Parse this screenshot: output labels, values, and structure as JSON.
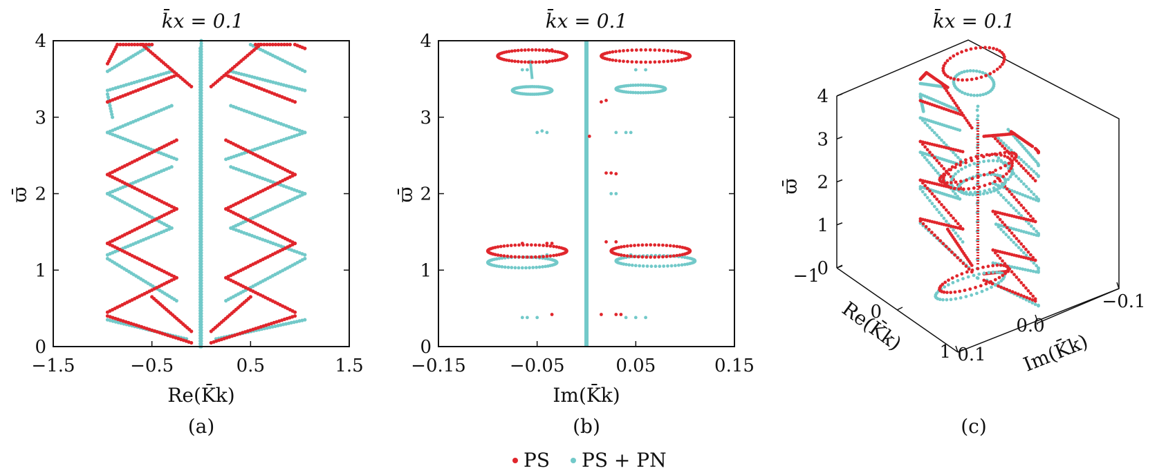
{
  "legend": [
    {
      "label": "PS",
      "color": "#e0262c"
    },
    {
      "label": "PS + PN",
      "color": "#72c9c9"
    }
  ],
  "chart_data": [
    {
      "type": "scatter",
      "panel": "(a)",
      "title": "k̄x = 0.1",
      "xlabel": "Re(K̄k)",
      "ylabel": "ϖ̄",
      "xlim": [
        -1.5,
        1.5
      ],
      "ylim": [
        0,
        4
      ],
      "xticks": [
        "−1.5",
        "−0.5",
        "0.5",
        "1.5"
      ],
      "xtick_values": [
        -1.5,
        -0.5,
        0.5,
        1.5
      ],
      "yticks": [
        "0",
        "1",
        "2",
        "3",
        "4"
      ],
      "series": [
        {
          "name": "PS",
          "color": "#e0262c",
          "segments": [
            [
              [
                -0.95,
                0.4
              ],
              [
                -0.1,
                0.05
              ]
            ],
            [
              [
                -0.95,
                0.45
              ],
              [
                -0.25,
                0.9
              ]
            ],
            [
              [
                -0.25,
                0.9
              ],
              [
                -0.95,
                1.35
              ]
            ],
            [
              [
                -0.95,
                1.35
              ],
              [
                -0.25,
                1.8
              ]
            ],
            [
              [
                -0.25,
                1.8
              ],
              [
                -0.95,
                2.25
              ]
            ],
            [
              [
                -0.95,
                2.25
              ],
              [
                -0.25,
                2.7
              ]
            ],
            [
              [
                -0.95,
                3.2
              ],
              [
                -0.25,
                3.55
              ]
            ],
            [
              [
                -0.95,
                3.7
              ],
              [
                -0.85,
                3.95
              ]
            ],
            [
              [
                -0.85,
                3.95
              ],
              [
                -0.5,
                3.95
              ]
            ],
            [
              [
                -0.6,
                3.95
              ],
              [
                -0.1,
                3.4
              ]
            ],
            [
              [
                -0.5,
                0.65
              ],
              [
                -0.1,
                0.2
              ]
            ],
            [
              [
                0.95,
                0.4
              ],
              [
                0.1,
                0.05
              ]
            ],
            [
              [
                0.95,
                0.45
              ],
              [
                0.25,
                0.9
              ]
            ],
            [
              [
                0.25,
                0.9
              ],
              [
                0.95,
                1.35
              ]
            ],
            [
              [
                0.95,
                1.35
              ],
              [
                0.25,
                1.8
              ]
            ],
            [
              [
                0.25,
                1.8
              ],
              [
                0.95,
                2.25
              ]
            ],
            [
              [
                0.95,
                2.25
              ],
              [
                0.25,
                2.7
              ]
            ],
            [
              [
                0.95,
                3.2
              ],
              [
                0.25,
                3.55
              ]
            ],
            [
              [
                1.05,
                3.9
              ],
              [
                0.95,
                3.95
              ]
            ],
            [
              [
                0.9,
                3.95
              ],
              [
                0.55,
                3.95
              ]
            ],
            [
              [
                0.6,
                3.95
              ],
              [
                0.1,
                3.4
              ]
            ],
            [
              [
                0.5,
                0.65
              ],
              [
                0.1,
                0.2
              ]
            ]
          ]
        },
        {
          "name": "PS + PN",
          "color": "#72c9c9",
          "segments": [
            [
              [
                -0.95,
                0.35
              ],
              [
                -0.15,
                0.1
              ]
            ],
            [
              [
                -0.95,
                1.15
              ],
              [
                -0.25,
                0.6
              ]
            ],
            [
              [
                -0.95,
                1.2
              ],
              [
                -0.3,
                1.55
              ]
            ],
            [
              [
                -0.95,
                2.0
              ],
              [
                -0.3,
                2.35
              ]
            ],
            [
              [
                -0.3,
                1.55
              ],
              [
                -0.95,
                2.0
              ]
            ],
            [
              [
                -0.95,
                2.8
              ],
              [
                -0.25,
                2.45
              ]
            ],
            [
              [
                -0.95,
                2.8
              ],
              [
                -0.3,
                3.15
              ]
            ],
            [
              [
                -0.95,
                3.35
              ],
              [
                -0.3,
                3.6
              ]
            ],
            [
              [
                -0.95,
                3.6
              ],
              [
                -0.5,
                3.95
              ]
            ],
            [
              [
                -0.95,
                3.3
              ],
              [
                -0.9,
                3.0
              ]
            ],
            [
              [
                1.05,
                0.35
              ],
              [
                0.15,
                0.1
              ]
            ],
            [
              [
                1.05,
                1.15
              ],
              [
                0.25,
                0.6
              ]
            ],
            [
              [
                1.05,
                1.2
              ],
              [
                0.3,
                1.55
              ]
            ],
            [
              [
                1.05,
                2.0
              ],
              [
                0.3,
                2.35
              ]
            ],
            [
              [
                0.3,
                1.55
              ],
              [
                1.05,
                2.0
              ]
            ],
            [
              [
                1.05,
                2.8
              ],
              [
                0.25,
                2.45
              ]
            ],
            [
              [
                1.05,
                2.8
              ],
              [
                0.3,
                3.15
              ]
            ],
            [
              [
                1.05,
                3.35
              ],
              [
                0.3,
                3.6
              ]
            ],
            [
              [
                1.05,
                3.6
              ],
              [
                0.5,
                3.95
              ]
            ],
            [
              [
                -0.01,
                0.0
              ],
              [
                -0.01,
                3.9
              ]
            ],
            [
              [
                0.0,
                0.0
              ],
              [
                0.0,
                4.0
              ]
            ]
          ]
        }
      ]
    },
    {
      "type": "scatter",
      "panel": "(b)",
      "title": "k̄x = 0.1",
      "xlabel": "Im(K̄k)",
      "ylabel": "ϖ̄",
      "xlim": [
        -0.15,
        0.15
      ],
      "ylim": [
        0,
        4
      ],
      "xticks": [
        "−0.15",
        "−0.05",
        "0.05",
        "0.15"
      ],
      "xtick_values": [
        -0.15,
        -0.05,
        0.05,
        0.15
      ],
      "yticks": [
        "0",
        "1",
        "2",
        "3",
        "4"
      ],
      "series": [
        {
          "name": "PS",
          "color": "#e0262c",
          "loops": [
            {
              "cx": -0.055,
              "cy": 3.8,
              "rx": 0.035,
              "ry": 0.08
            },
            {
              "cx": 0.06,
              "cy": 3.8,
              "rx": 0.045,
              "ry": 0.08
            },
            {
              "cx": -0.06,
              "cy": 1.25,
              "rx": 0.04,
              "ry": 0.08
            },
            {
              "cx": 0.065,
              "cy": 1.25,
              "rx": 0.04,
              "ry": 0.08
            }
          ],
          "dots": [
            [
              -0.04,
              3.88
            ],
            [
              -0.035,
              3.88
            ],
            [
              -0.04,
              3.72
            ],
            [
              0.015,
              3.2
            ],
            [
              0.02,
              3.22
            ],
            [
              0.003,
              2.75
            ],
            [
              0.02,
              2.27
            ],
            [
              0.025,
              2.27
            ],
            [
              0.03,
              2.26
            ],
            [
              -0.04,
              1.35
            ],
            [
              -0.035,
              1.35
            ],
            [
              -0.065,
              1.35
            ],
            [
              0.02,
              1.37
            ],
            [
              0.03,
              1.37
            ],
            [
              -0.035,
              0.42
            ],
            [
              0.015,
              0.42
            ],
            [
              0.03,
              0.42
            ],
            [
              0.035,
              0.42
            ]
          ]
        },
        {
          "name": "PS + PN",
          "color": "#72c9c9",
          "loops": [
            {
              "cx": -0.055,
              "cy": 3.35,
              "rx": 0.02,
              "ry": 0.05
            },
            {
              "cx": 0.055,
              "cy": 3.37,
              "rx": 0.025,
              "ry": 0.05
            },
            {
              "cx": -0.065,
              "cy": 1.1,
              "rx": 0.035,
              "ry": 0.07
            },
            {
              "cx": 0.07,
              "cy": 1.12,
              "rx": 0.04,
              "ry": 0.07
            }
          ],
          "dots": [
            [
              -0.065,
              3.62
            ],
            [
              -0.06,
              3.62
            ],
            [
              0.05,
              3.62
            ],
            [
              0.06,
              3.62
            ],
            [
              -0.05,
              2.8
            ],
            [
              -0.045,
              2.82
            ],
            [
              -0.04,
              2.8
            ],
            [
              0.03,
              2.8
            ],
            [
              0.04,
              2.8
            ],
            [
              0.045,
              2.8
            ],
            [
              0.025,
              2.0
            ],
            [
              0.03,
              2.0
            ],
            [
              -0.045,
              1.18
            ],
            [
              -0.04,
              1.2
            ],
            [
              0.035,
              1.2
            ],
            [
              0.045,
              1.2
            ],
            [
              -0.065,
              0.38
            ],
            [
              -0.06,
              0.38
            ],
            [
              -0.05,
              0.38
            ],
            [
              0.04,
              0.38
            ],
            [
              0.05,
              0.38
            ],
            [
              0.06,
              0.38
            ]
          ],
          "vertical_line_x": 0.0,
          "short_segment": [
            [
              -0.057,
              3.75
            ],
            [
              -0.055,
              3.5
            ]
          ]
        }
      ]
    },
    {
      "type": "scatter",
      "panel": "(c)",
      "projection": "3d",
      "title": "k̄x = 0.1",
      "xlabel": "Re(K̄k)",
      "ylabel": "Im(K̄k)",
      "zlabel": "ϖ̄",
      "xticks": [
        "−1",
        "0",
        "1"
      ],
      "yticks": [
        "0.1",
        "0.0",
        "−0.1"
      ],
      "zticks": [
        "0",
        "1",
        "2",
        "3",
        "4"
      ],
      "zlim": [
        0,
        4
      ]
    }
  ],
  "panel_titles": [
    "k̄x = 0.1",
    "k̄x = 0.1",
    "k̄x = 0.1"
  ],
  "panel_labels": [
    "(a)",
    "(b)",
    "(c)"
  ],
  "axis_titles": {
    "a_x": "Re(K̄k)",
    "a_y": "ϖ̄",
    "b_x": "Im(K̄k)",
    "b_y": "ϖ̄",
    "c_x": "Re(K̄k)",
    "c_y": "Im(K̄k)",
    "c_z": "ϖ̄"
  },
  "panel_c_ticks": {
    "z": [
      "0",
      "1",
      "2",
      "3",
      "4"
    ],
    "x": [
      "−1",
      "0",
      "1"
    ],
    "y": [
      "0.1",
      "0.0",
      "−0.1"
    ]
  }
}
